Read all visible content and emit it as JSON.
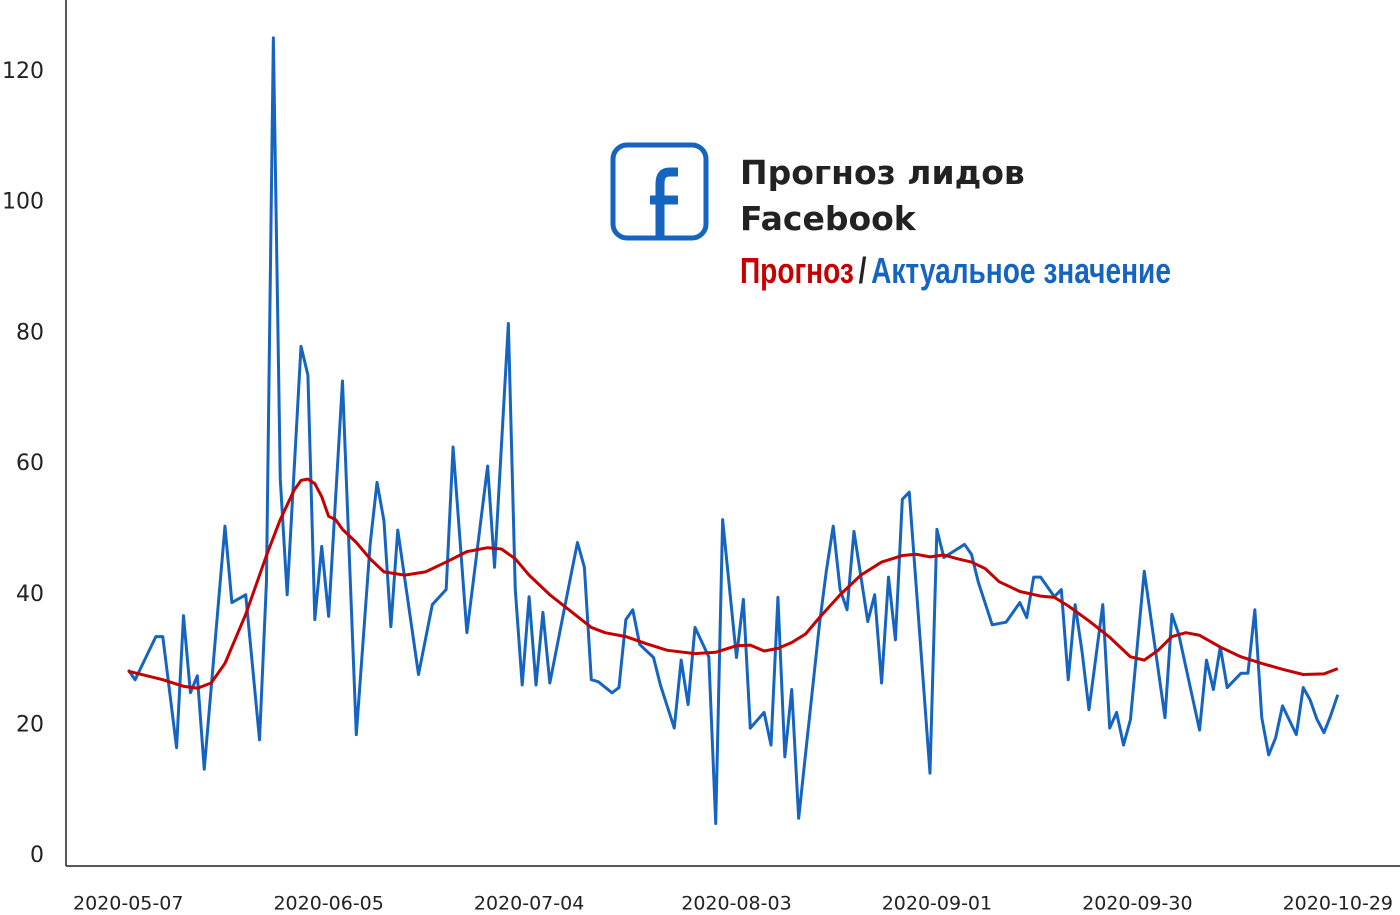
{
  "chart_data": {
    "type": "line",
    "title": "Прогноз лидов Facebook",
    "legend_separator": "/",
    "xlim": [
      "2020-04-28",
      "2020-11-07"
    ],
    "xticks": [
      "2020-05-07",
      "2020-06-05",
      "2020-07-04",
      "2020-08-03",
      "2020-09-01",
      "2020-09-30",
      "2020-10-29"
    ],
    "ylim": [
      -1.5,
      131
    ],
    "yticks": [
      0,
      20,
      40,
      60,
      80,
      100,
      120
    ],
    "grid": false,
    "series": [
      {
        "name": "Актуальное значение",
        "color": "#1565c0",
        "x": [
          "2020-05-07",
          "2020-05-08",
          "2020-05-11",
          "2020-05-12",
          "2020-05-14",
          "2020-05-15",
          "2020-05-16",
          "2020-05-17",
          "2020-05-18",
          "2020-05-21",
          "2020-05-22",
          "2020-05-24",
          "2020-05-26",
          "2020-05-27",
          "2020-05-28",
          "2020-05-29",
          "2020-05-30",
          "2020-06-01",
          "2020-06-02",
          "2020-06-03",
          "2020-06-04",
          "2020-06-05",
          "2020-06-07",
          "2020-06-09",
          "2020-06-11",
          "2020-06-12",
          "2020-06-13",
          "2020-06-14",
          "2020-06-15",
          "2020-06-18",
          "2020-06-20",
          "2020-06-22",
          "2020-06-23",
          "2020-06-25",
          "2020-06-28",
          "2020-06-29",
          "2020-07-01",
          "2020-07-02",
          "2020-07-03",
          "2020-07-04",
          "2020-07-05",
          "2020-07-06",
          "2020-07-07",
          "2020-07-10",
          "2020-07-11",
          "2020-07-12",
          "2020-07-13",
          "2020-07-14",
          "2020-07-16",
          "2020-07-17",
          "2020-07-18",
          "2020-07-19",
          "2020-07-20",
          "2020-07-22",
          "2020-07-23",
          "2020-07-25",
          "2020-07-26",
          "2020-07-27",
          "2020-07-28",
          "2020-07-30",
          "2020-07-31",
          "2020-08-01",
          "2020-08-03",
          "2020-08-04",
          "2020-08-05",
          "2020-08-07",
          "2020-08-08",
          "2020-08-09",
          "2020-08-10",
          "2020-08-11",
          "2020-08-12",
          "2020-08-15",
          "2020-08-16",
          "2020-08-17",
          "2020-08-18",
          "2020-08-19",
          "2020-08-20",
          "2020-08-22",
          "2020-08-23",
          "2020-08-24",
          "2020-08-25",
          "2020-08-26",
          "2020-08-27",
          "2020-08-28",
          "2020-08-31",
          "2020-09-01",
          "2020-09-02",
          "2020-09-05",
          "2020-09-06",
          "2020-09-07",
          "2020-09-09",
          "2020-09-11",
          "2020-09-13",
          "2020-09-14",
          "2020-09-15",
          "2020-09-16",
          "2020-09-18",
          "2020-09-19",
          "2020-09-20",
          "2020-09-21",
          "2020-09-22",
          "2020-09-23",
          "2020-09-25",
          "2020-09-26",
          "2020-09-27",
          "2020-09-28",
          "2020-09-29",
          "2020-10-01",
          "2020-10-04",
          "2020-10-05",
          "2020-10-06",
          "2020-10-09",
          "2020-10-10",
          "2020-10-11",
          "2020-10-12",
          "2020-10-13",
          "2020-10-15",
          "2020-10-16",
          "2020-10-17",
          "2020-10-18",
          "2020-10-19",
          "2020-10-20",
          "2020-10-21",
          "2020-10-23",
          "2020-10-24",
          "2020-10-25",
          "2020-10-26",
          "2020-10-27",
          "2020-10-28",
          "2020-10-29"
        ],
        "values": [
          28.5,
          27,
          33.6,
          33.6,
          16.6,
          36.8,
          25,
          27.6,
          13.3,
          50.5,
          38.8,
          40,
          17.8,
          42,
          125.2,
          57.7,
          40,
          78,
          73.6,
          36.2,
          47.4,
          36.7,
          72.7,
          18.6,
          47.7,
          57.2,
          51.3,
          35.1,
          49.9,
          27.8,
          38.5,
          40.8,
          62.6,
          34.2,
          59.7,
          44.2,
          81.5,
          40.8,
          26.2,
          39.7,
          26.2,
          37.3,
          26.5,
          42.7,
          48,
          44.2,
          27,
          26.7,
          25,
          25.8,
          36.2,
          37.7,
          32.4,
          30.4,
          26.2,
          19.6,
          30,
          23.2,
          35,
          30.5,
          5,
          51.5,
          30.4,
          39.3,
          19.6,
          22,
          17,
          39.6,
          15.2,
          25.5,
          5.8,
          35.4,
          43.6,
          50.5,
          40.8,
          37.7,
          49.7,
          35.9,
          40,
          26.5,
          42.7,
          33.1,
          54.6,
          55.7,
          12.7,
          50,
          45.7,
          47.7,
          46.2,
          41.9,
          35.4,
          35.8,
          38.8,
          36.5,
          42.7,
          42.7,
          39.7,
          40.8,
          27,
          38.5,
          31.3,
          22.4,
          38.5,
          19.6,
          22,
          17,
          20.9,
          43.6,
          21.2,
          37,
          33.9,
          19.3,
          30,
          25.5,
          32,
          25.8,
          28,
          28,
          37.7,
          21.2,
          15.5,
          18.1,
          23,
          18.6,
          25.8,
          23.9,
          20.9,
          18.9,
          21.6,
          24.7
        ]
      },
      {
        "name": "Прогноз",
        "color": "#c40000",
        "x": [
          "2020-05-07",
          "2020-05-12",
          "2020-05-15",
          "2020-05-17",
          "2020-05-19",
          "2020-05-21",
          "2020-05-24",
          "2020-05-27",
          "2020-05-29",
          "2020-05-31",
          "2020-06-01",
          "2020-06-02",
          "2020-06-03",
          "2020-06-04",
          "2020-06-05",
          "2020-06-06",
          "2020-06-07",
          "2020-06-09",
          "2020-06-11",
          "2020-06-13",
          "2020-06-16",
          "2020-06-19",
          "2020-06-22",
          "2020-06-25",
          "2020-06-28",
          "2020-06-30",
          "2020-07-02",
          "2020-07-04",
          "2020-07-07",
          "2020-07-10",
          "2020-07-13",
          "2020-07-15",
          "2020-07-18",
          "2020-07-21",
          "2020-07-24",
          "2020-07-28",
          "2020-07-31",
          "2020-08-03",
          "2020-08-05",
          "2020-08-07",
          "2020-08-09",
          "2020-08-11",
          "2020-08-13",
          "2020-08-15",
          "2020-08-18",
          "2020-08-21",
          "2020-08-24",
          "2020-08-27",
          "2020-08-29",
          "2020-08-31",
          "2020-09-02",
          "2020-09-04",
          "2020-09-06",
          "2020-09-08",
          "2020-09-10",
          "2020-09-13",
          "2020-09-16",
          "2020-09-18",
          "2020-09-20",
          "2020-09-23",
          "2020-09-26",
          "2020-09-29",
          "2020-10-01",
          "2020-10-03",
          "2020-10-05",
          "2020-10-07",
          "2020-10-09",
          "2020-10-12",
          "2020-10-15",
          "2020-10-18",
          "2020-10-21",
          "2020-10-24",
          "2020-10-27",
          "2020-10-29"
        ],
        "values": [
          28.3,
          27,
          26,
          25.7,
          26.5,
          29.5,
          37,
          46,
          51.5,
          56,
          57.5,
          57.7,
          57,
          55,
          52,
          51.5,
          50,
          48,
          45.5,
          43.5,
          43,
          43.5,
          45,
          46.6,
          47.2,
          47,
          45.5,
          43,
          40,
          37.5,
          35,
          34.2,
          33.6,
          32.5,
          31.5,
          31,
          31.2,
          32.2,
          32.3,
          31.4,
          31.8,
          32.7,
          34,
          36.5,
          40,
          43,
          45,
          46,
          46.2,
          45.8,
          46.1,
          45.5,
          45,
          44,
          42,
          40.5,
          39.8,
          39.6,
          38.3,
          36,
          33.5,
          30.5,
          30,
          31.5,
          33.6,
          34.2,
          33.8,
          32,
          30.5,
          29.5,
          28.6,
          27.8,
          27.9,
          28.7
        ]
      }
    ]
  }
}
